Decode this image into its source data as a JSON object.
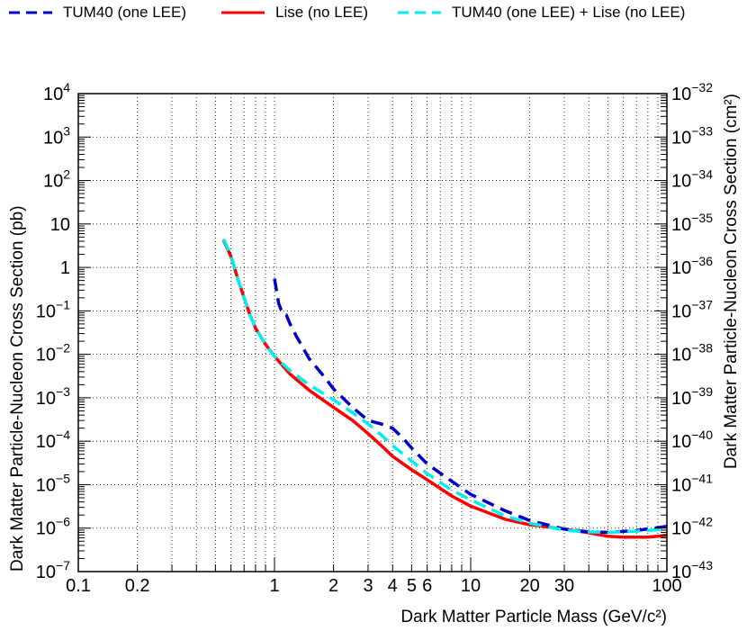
{
  "chart_data": {
    "type": "line",
    "xlabel": "Dark Matter Particle Mass (GeV/c²)",
    "ylabel_left": "Dark Matter Particle-Nucleon Cross Section (pb)",
    "ylabel_right": "Dark Matter Particle-Nucleon Cross Section (cm²)",
    "xscale": "log",
    "yscale": "log",
    "xlim": [
      0.1,
      100
    ],
    "ylim_left": [
      1e-07,
      10000
    ],
    "ylim_right": [
      1e-43,
      1e-32
    ],
    "grid": true,
    "legend_position": "top",
    "x_ticks": [
      {
        "value": 0.1,
        "label": "0.1"
      },
      {
        "value": 0.2,
        "label": "0.2"
      },
      {
        "value": 1,
        "label": "1"
      },
      {
        "value": 2,
        "label": "2"
      },
      {
        "value": 3,
        "label": "3"
      },
      {
        "value": 4,
        "label": "4"
      },
      {
        "value": 5,
        "label": "5"
      },
      {
        "value": 6,
        "label": "6"
      },
      {
        "value": 10,
        "label": "10"
      },
      {
        "value": 20,
        "label": "20"
      },
      {
        "value": 30,
        "label": "30"
      },
      {
        "value": 100,
        "label": "100"
      }
    ],
    "y_ticks_left": [
      {
        "value": 1e-07,
        "base": "10",
        "exp": "−7"
      },
      {
        "value": 1e-06,
        "base": "10",
        "exp": "−6"
      },
      {
        "value": 1e-05,
        "base": "10",
        "exp": "−5"
      },
      {
        "value": 0.0001,
        "base": "10",
        "exp": "−4"
      },
      {
        "value": 0.001,
        "base": "10",
        "exp": "−3"
      },
      {
        "value": 0.01,
        "base": "10",
        "exp": "−2"
      },
      {
        "value": 0.1,
        "base": "10",
        "exp": "−1"
      },
      {
        "value": 1,
        "base": "1",
        "exp": ""
      },
      {
        "value": 10,
        "base": "10",
        "exp": ""
      },
      {
        "value": 100,
        "base": "10",
        "exp": "2"
      },
      {
        "value": 1000,
        "base": "10",
        "exp": "3"
      },
      {
        "value": 10000,
        "base": "10",
        "exp": "4"
      }
    ],
    "y_ticks_right": [
      {
        "exp_value": -43,
        "base": "10",
        "exp": "−43"
      },
      {
        "exp_value": -42,
        "base": "10",
        "exp": "−42"
      },
      {
        "exp_value": -41,
        "base": "10",
        "exp": "−41"
      },
      {
        "exp_value": -40,
        "base": "10",
        "exp": "−40"
      },
      {
        "exp_value": -39,
        "base": "10",
        "exp": "−39"
      },
      {
        "exp_value": -38,
        "base": "10",
        "exp": "−38"
      },
      {
        "exp_value": -37,
        "base": "10",
        "exp": "−37"
      },
      {
        "exp_value": -36,
        "base": "10",
        "exp": "−36"
      },
      {
        "exp_value": -35,
        "base": "10",
        "exp": "−35"
      },
      {
        "exp_value": -34,
        "base": "10",
        "exp": "−34"
      },
      {
        "exp_value": -33,
        "base": "10",
        "exp": "−33"
      },
      {
        "exp_value": -32,
        "base": "10",
        "exp": "−32"
      }
    ],
    "series": [
      {
        "name": "Lise (no LEE)",
        "color": "#ff0000",
        "style": "solid",
        "points": [
          [
            0.55,
            4.2
          ],
          [
            0.6,
            1.8
          ],
          [
            0.65,
            0.55
          ],
          [
            0.7,
            0.2
          ],
          [
            0.75,
            0.08
          ],
          [
            0.8,
            0.04
          ],
          [
            0.9,
            0.017
          ],
          [
            1.0,
            0.009
          ],
          [
            1.2,
            0.0035
          ],
          [
            1.5,
            0.0015
          ],
          [
            2.0,
            0.0006
          ],
          [
            2.5,
            0.0003
          ],
          [
            3.0,
            0.00015
          ],
          [
            3.5,
            8e-05
          ],
          [
            4.0,
            4.5e-05
          ],
          [
            5.0,
            2.2e-05
          ],
          [
            6.0,
            1.3e-05
          ],
          [
            8.0,
            5.5e-06
          ],
          [
            10.0,
            3.2e-06
          ],
          [
            15.0,
            1.6e-06
          ],
          [
            20.0,
            1.2e-06
          ],
          [
            30.0,
            9.5e-07
          ],
          [
            40.0,
            7.8e-07
          ],
          [
            50.0,
            6.5e-07
          ],
          [
            60.0,
            6.2e-07
          ],
          [
            80.0,
            6.2e-07
          ],
          [
            100.0,
            6.8e-07
          ]
        ]
      },
      {
        "name": "TUM40 (one LEE)",
        "color": "#0000cc",
        "style": "dashed",
        "points": [
          [
            1.0,
            0.55
          ],
          [
            1.05,
            0.15
          ],
          [
            1.1,
            0.085
          ],
          [
            1.15,
            0.08
          ],
          [
            1.2,
            0.05
          ],
          [
            1.3,
            0.025
          ],
          [
            1.5,
            0.008
          ],
          [
            1.8,
            0.003
          ],
          [
            2.0,
            0.0016
          ],
          [
            2.5,
            0.0006
          ],
          [
            3.0,
            0.0003
          ],
          [
            3.5,
            0.00025
          ],
          [
            4.0,
            0.0002
          ],
          [
            4.5,
            0.00012
          ],
          [
            5.0,
            7e-05
          ],
          [
            6.0,
            3e-05
          ],
          [
            8.0,
            1.2e-05
          ],
          [
            10.0,
            6e-06
          ],
          [
            15.0,
            2.5e-06
          ],
          [
            20.0,
            1.5e-06
          ],
          [
            30.0,
            9.5e-07
          ],
          [
            40.0,
            8.2e-07
          ],
          [
            50.0,
            8e-07
          ],
          [
            70.0,
            8.8e-07
          ],
          [
            100.0,
            1.1e-06
          ]
        ]
      },
      {
        "name": "TUM40 (one LEE) + Lise (no LEE)",
        "color": "#00eeee",
        "style": "dashed",
        "points": [
          [
            0.55,
            4.5
          ],
          [
            0.6,
            1.9
          ],
          [
            0.65,
            0.55
          ],
          [
            0.7,
            0.2
          ],
          [
            0.75,
            0.08
          ],
          [
            0.8,
            0.04
          ],
          [
            0.9,
            0.017
          ],
          [
            1.0,
            0.009
          ],
          [
            1.2,
            0.0042
          ],
          [
            1.5,
            0.002
          ],
          [
            2.0,
            0.0009
          ],
          [
            2.5,
            0.00045
          ],
          [
            3.0,
            0.00025
          ],
          [
            3.5,
            0.00014
          ],
          [
            4.0,
            8e-05
          ],
          [
            5.0,
            3.5e-05
          ],
          [
            6.0,
            1.8e-05
          ],
          [
            8.0,
            7.5e-06
          ],
          [
            10.0,
            4.5e-06
          ],
          [
            15.0,
            1.9e-06
          ],
          [
            20.0,
            1.3e-06
          ],
          [
            30.0,
            9e-07
          ],
          [
            40.0,
            8.2e-07
          ],
          [
            50.0,
            8e-07
          ],
          [
            70.0,
            8.5e-07
          ],
          [
            100.0,
            9.5e-07
          ]
        ]
      }
    ]
  },
  "legend": {
    "items": [
      {
        "label": "TUM40 (one LEE)",
        "color": "#0000cc",
        "style": "dashed"
      },
      {
        "label": "Lise (no LEE)",
        "color": "#ff0000",
        "style": "solid"
      },
      {
        "label": "TUM40 (one LEE) + Lise (no LEE)",
        "color": "#00eeee",
        "style": "dashed"
      }
    ]
  }
}
